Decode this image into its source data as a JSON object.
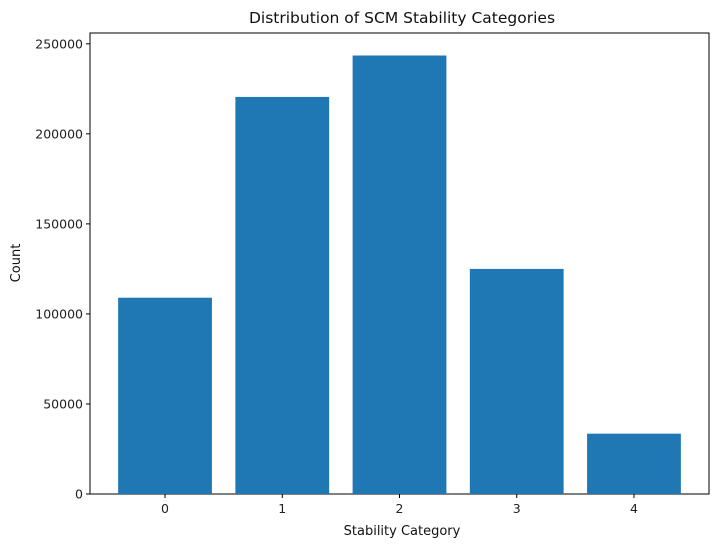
{
  "chart_data": {
    "type": "bar",
    "title": "Distribution of SCM Stability Categories",
    "xlabel": "Stability Category",
    "ylabel": "Count",
    "categories": [
      "0",
      "1",
      "2",
      "3",
      "4"
    ],
    "values": [
      109000,
      220500,
      243500,
      125000,
      33500
    ],
    "ylim": [
      0,
      256000
    ],
    "yticks": [
      0,
      50000,
      100000,
      150000,
      200000,
      250000
    ],
    "grid": false,
    "bar_color": "#1f77b4"
  }
}
